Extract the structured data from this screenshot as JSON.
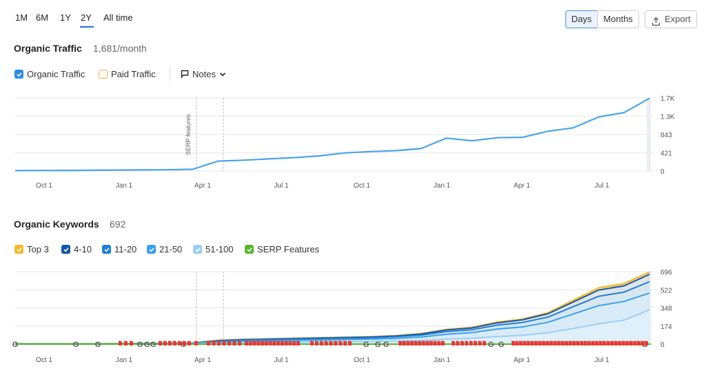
{
  "range_tabs": [
    {
      "label": "1M",
      "active": false
    },
    {
      "label": "6M",
      "active": false
    },
    {
      "label": "1Y",
      "active": false
    },
    {
      "label": "2Y",
      "active": true
    },
    {
      "label": "All time",
      "active": false
    }
  ],
  "granularity": {
    "days": "Days",
    "months": "Months",
    "active": "Days"
  },
  "export_label": "Export",
  "traffic": {
    "title": "Organic Traffic",
    "value": "1,681/month",
    "legend": {
      "organic": "Organic Traffic",
      "paid": "Paid Traffic",
      "notes": "Notes"
    }
  },
  "keywords": {
    "title": "Organic Keywords",
    "value": "692",
    "legend": [
      {
        "label": "Top 3",
        "color": "#f5b82e"
      },
      {
        "label": "4-10",
        "color": "#1456a8"
      },
      {
        "label": "11-20",
        "color": "#1f7fd6"
      },
      {
        "label": "21-50",
        "color": "#3aa0ef"
      },
      {
        "label": "51-100",
        "color": "#9ccdf6"
      },
      {
        "label": "SERP Features",
        "color": "#58b42f"
      }
    ]
  },
  "colors": {
    "accent": "#1a73e8",
    "line": "#4aa3e8",
    "google_green": "#58b42f",
    "flag_red": "#e53935"
  },
  "chart_data": [
    {
      "type": "line",
      "title": "",
      "x_ticks": [
        "Oct 1",
        "Jan 1",
        "Apr 1",
        "Jul 1",
        "Oct 1",
        "Jan 1",
        "Apr 1",
        "Jul 1"
      ],
      "y_ticks": [
        "1.7K",
        "1.3K",
        "843",
        "421",
        "0"
      ],
      "ylim": [
        0,
        1690
      ],
      "annotation": "SERP features",
      "series": [
        {
          "name": "Organic Traffic",
          "x": [
            "2022-08",
            "2022-09",
            "2022-10",
            "2022-11",
            "2022-12",
            "2023-01",
            "2023-02",
            "2023-03",
            "2023-04",
            "2023-05",
            "2023-06",
            "2023-07",
            "2023-08",
            "2023-09",
            "2023-10",
            "2023-11",
            "2023-12",
            "2024-01",
            "2024-02",
            "2024-03",
            "2024-04",
            "2024-05",
            "2024-06",
            "2024-07",
            "2024-08",
            "2024-09"
          ],
          "values": [
            10,
            12,
            15,
            18,
            22,
            25,
            28,
            40,
            230,
            250,
            280,
            310,
            350,
            420,
            450,
            470,
            520,
            760,
            700,
            770,
            780,
            920,
            1000,
            1250,
            1350,
            1681
          ]
        }
      ]
    },
    {
      "type": "area",
      "title": "",
      "x_ticks": [
        "Oct 1",
        "Jan 1",
        "Apr 1",
        "Jul 1",
        "Oct 1",
        "Jan 1",
        "Apr 1",
        "Jul 1"
      ],
      "y_ticks": [
        "696",
        "522",
        "348",
        "174",
        "0"
      ],
      "ylim": [
        0,
        696
      ],
      "x": [
        "2022-08",
        "2022-09",
        "2022-10",
        "2022-11",
        "2022-12",
        "2023-01",
        "2023-02",
        "2023-03",
        "2023-04",
        "2023-05",
        "2023-06",
        "2023-07",
        "2023-08",
        "2023-09",
        "2023-10",
        "2023-11",
        "2023-12",
        "2024-01",
        "2024-02",
        "2024-03",
        "2024-04",
        "2024-05",
        "2024-06",
        "2024-07",
        "2024-08",
        "2024-09"
      ],
      "series": [
        {
          "name": "Top 3",
          "values": [
            2,
            2,
            3,
            3,
            4,
            5,
            6,
            10,
            35,
            45,
            50,
            55,
            60,
            65,
            70,
            80,
            100,
            140,
            160,
            210,
            240,
            300,
            420,
            540,
            580,
            692
          ]
        },
        {
          "name": "4-10",
          "values": [
            2,
            2,
            3,
            3,
            4,
            5,
            6,
            9,
            33,
            43,
            48,
            53,
            58,
            63,
            68,
            78,
            97,
            136,
            155,
            204,
            233,
            292,
            405,
            520,
            560,
            670
          ]
        },
        {
          "name": "11-20",
          "values": [
            1,
            1,
            2,
            2,
            3,
            4,
            5,
            8,
            28,
            38,
            43,
            47,
            52,
            56,
            60,
            70,
            86,
            120,
            138,
            182,
            208,
            260,
            360,
            460,
            500,
            600
          ]
        },
        {
          "name": "21-50",
          "values": [
            1,
            1,
            1,
            2,
            2,
            3,
            4,
            6,
            20,
            28,
            32,
            36,
            40,
            44,
            48,
            55,
            68,
            95,
            110,
            145,
            165,
            210,
            290,
            370,
            410,
            490
          ]
        },
        {
          "name": "51-100",
          "values": [
            0,
            0,
            1,
            1,
            1,
            1,
            2,
            3,
            10,
            14,
            16,
            18,
            20,
            22,
            24,
            28,
            34,
            48,
            56,
            72,
            84,
            110,
            150,
            195,
            230,
            330
          ]
        }
      ]
    }
  ]
}
